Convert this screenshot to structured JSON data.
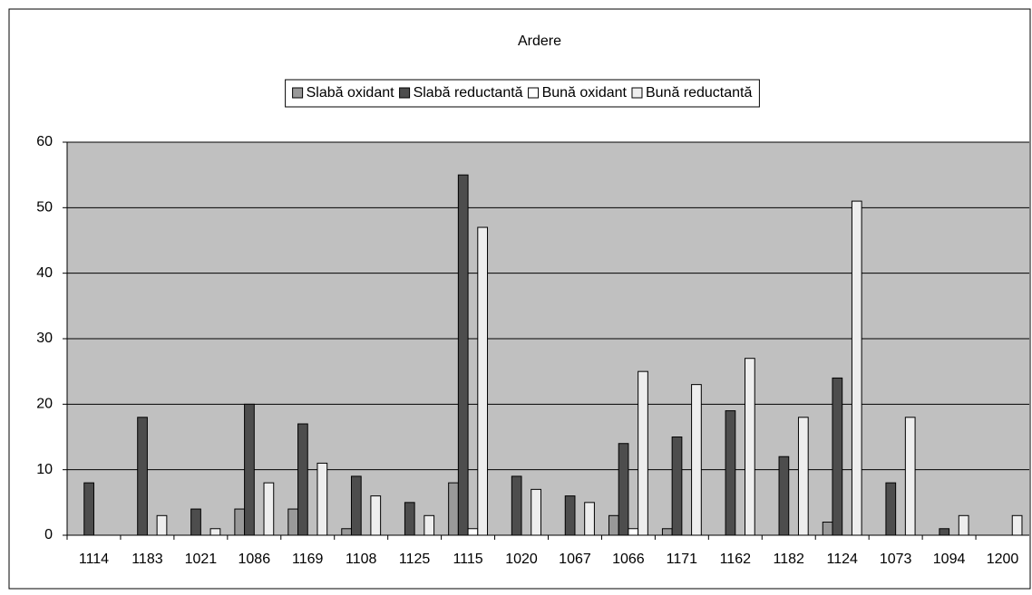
{
  "chart_data": {
    "type": "bar",
    "title": "Ardere",
    "categories": [
      "1114",
      "1183",
      "1021",
      "1086",
      "1169",
      "1108",
      "1125",
      "1115",
      "1020",
      "1067",
      "1066",
      "1171",
      "1162",
      "1182",
      "1124",
      "1073",
      "1094",
      "1200"
    ],
    "series": [
      {
        "name": "Slabă oxidant",
        "color": "#999999",
        "values": [
          0,
          0,
          0,
          4,
          4,
          1,
          0,
          8,
          0,
          0,
          3,
          1,
          0,
          0,
          2,
          0,
          0,
          0
        ]
      },
      {
        "name": "Slabă reductantă",
        "color": "#4d4d4d",
        "values": [
          8,
          18,
          4,
          20,
          17,
          9,
          5,
          55,
          9,
          6,
          14,
          15,
          19,
          12,
          24,
          8,
          1,
          0
        ]
      },
      {
        "name": "Bună oxidant",
        "color": "#ffffff",
        "values": [
          0,
          0,
          0,
          0,
          0,
          0,
          0,
          1,
          0,
          0,
          1,
          0,
          0,
          0,
          0,
          0,
          0,
          0
        ]
      },
      {
        "name": "Bună reductantă",
        "color": "#eeeeee",
        "values": [
          0,
          3,
          1,
          8,
          11,
          6,
          3,
          47,
          7,
          5,
          25,
          23,
          27,
          18,
          51,
          18,
          3,
          3
        ]
      }
    ],
    "ylim": [
      0,
      60
    ],
    "yticks": [
      0,
      10,
      20,
      30,
      40,
      50,
      60
    ],
    "grid": true,
    "legend": "top"
  }
}
